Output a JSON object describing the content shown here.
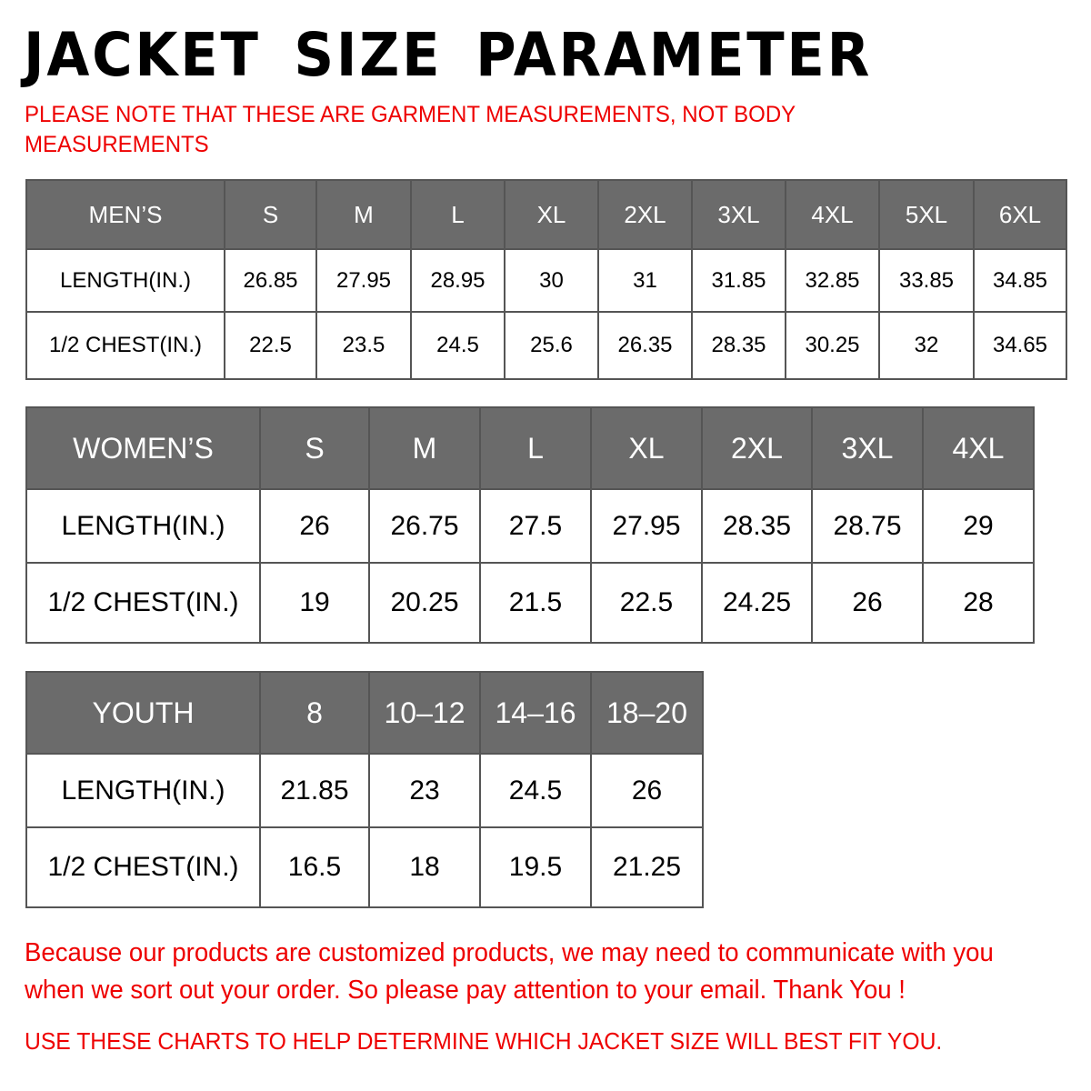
{
  "title": "JACKET  SIZE  PARAMETER",
  "note": "PLEASE NOTE THAT THESE ARE GARMENT MEASUREMENTS, NOT BODY MEASUREMENTS",
  "tables": {
    "men": {
      "header": [
        "MEN’S",
        "S",
        "M",
        "L",
        "XL",
        "2XL",
        "3XL",
        "4XL",
        "5XL",
        "6XL"
      ],
      "rows": [
        [
          "LENGTH(IN.)",
          "26.85",
          "27.95",
          "28.95",
          "30",
          "31",
          "31.85",
          "32.85",
          "33.85",
          "34.85"
        ],
        [
          "1/2 CHEST(IN.)",
          "22.5",
          "23.5",
          "24.5",
          "25.6",
          "26.35",
          "28.35",
          "30.25",
          "32",
          "34.65"
        ]
      ]
    },
    "women": {
      "header": [
        "WOMEN’S",
        "S",
        "M",
        "L",
        "XL",
        "2XL",
        "3XL",
        "4XL"
      ],
      "rows": [
        [
          "LENGTH(IN.)",
          "26",
          "26.75",
          "27.5",
          "27.95",
          "28.35",
          "28.75",
          "29"
        ],
        [
          "1/2 CHEST(IN.)",
          "19",
          "20.25",
          "21.5",
          "22.5",
          "24.25",
          "26",
          "28"
        ]
      ]
    },
    "youth": {
      "header": [
        "YOUTH",
        "8",
        "10–12",
        "14–16",
        "18–20"
      ],
      "rows": [
        [
          "LENGTH(IN.)",
          "21.85",
          "23",
          "24.5",
          "26"
        ],
        [
          "1/2 CHEST(IN.)",
          "16.5",
          "18",
          "19.5",
          "21.25"
        ]
      ]
    }
  },
  "footer": {
    "message": "Because our products are customized products, we may need to communicate with you when we sort out your order. So please pay attention to your email. Thank You !",
    "advice": "USE THESE CHARTS TO HELP DETERMINE WHICH JACKET SIZE WILL BEST FIT YOU."
  },
  "colors": {
    "header_bg": "#6b6b6b",
    "accent_red": "#ee0000"
  }
}
